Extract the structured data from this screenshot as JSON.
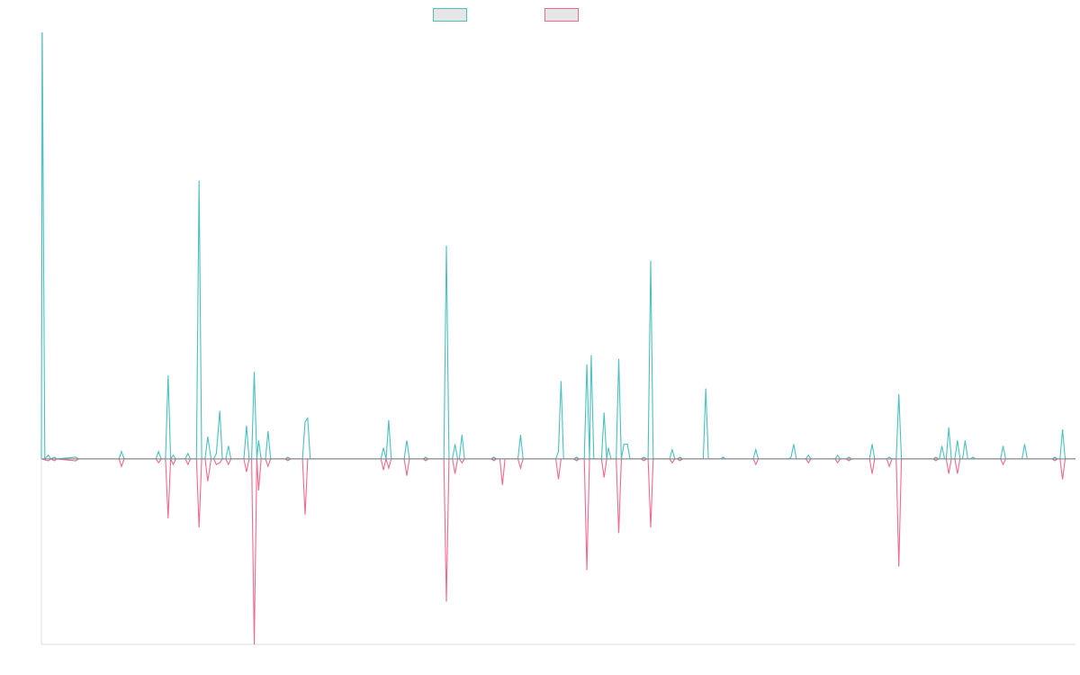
{
  "chart_data": {
    "type": "line",
    "title": "",
    "xlabel": "",
    "ylabel": "",
    "x_range": [
      0,
      120
    ],
    "ylim": [
      -100,
      230
    ],
    "grid": false,
    "legend": "top-center",
    "colors": {
      "series_1": "#4bc0c0",
      "series_2": "#f06a8f",
      "baseline": "#888888",
      "axis": "#dddddd"
    },
    "series": [
      {
        "name": "",
        "color": "#4bc0c0",
        "points": [
          [
            0,
            0
          ],
          [
            0.1,
            230
          ],
          [
            0.4,
            0
          ],
          [
            0.8,
            2
          ],
          [
            1.1,
            0
          ],
          [
            1.5,
            1
          ],
          [
            1.8,
            0
          ],
          [
            4.0,
            1
          ],
          [
            4.3,
            0
          ],
          [
            9.0,
            0
          ],
          [
            9.3,
            4
          ],
          [
            9.6,
            0
          ],
          [
            13.3,
            0
          ],
          [
            13.6,
            4
          ],
          [
            13.9,
            0
          ],
          [
            14.4,
            0
          ],
          [
            14.7,
            45
          ],
          [
            15.0,
            0
          ],
          [
            15.3,
            2
          ],
          [
            15.6,
            0
          ],
          [
            16.7,
            0
          ],
          [
            17.0,
            3
          ],
          [
            17.3,
            0
          ],
          [
            18.0,
            0
          ],
          [
            18.3,
            150
          ],
          [
            18.6,
            0
          ],
          [
            19.0,
            0
          ],
          [
            19.3,
            12
          ],
          [
            19.7,
            0
          ],
          [
            20.0,
            0
          ],
          [
            20.3,
            3
          ],
          [
            20.7,
            26
          ],
          [
            21.0,
            0
          ],
          [
            21.4,
            0
          ],
          [
            21.7,
            7
          ],
          [
            22.0,
            0
          ],
          [
            23.5,
            0
          ],
          [
            23.8,
            18
          ],
          [
            24.1,
            0
          ],
          [
            24.4,
            0
          ],
          [
            24.7,
            47
          ],
          [
            25.0,
            0
          ],
          [
            25.2,
            10
          ],
          [
            25.5,
            0
          ],
          [
            26.0,
            0
          ],
          [
            26.3,
            15
          ],
          [
            26.6,
            0
          ],
          [
            28.3,
            0
          ],
          [
            28.6,
            1
          ],
          [
            28.9,
            0
          ],
          [
            30.3,
            0
          ],
          [
            30.6,
            20
          ],
          [
            30.9,
            22
          ],
          [
            31.2,
            0
          ],
          [
            39.4,
            0
          ],
          [
            39.7,
            6
          ],
          [
            40.0,
            0
          ],
          [
            40.3,
            21
          ],
          [
            40.6,
            0
          ],
          [
            42.1,
            0
          ],
          [
            42.4,
            10
          ],
          [
            42.7,
            0
          ],
          [
            44.3,
            0
          ],
          [
            44.6,
            1
          ],
          [
            44.9,
            0
          ],
          [
            46.7,
            0
          ],
          [
            47.0,
            115
          ],
          [
            47.3,
            0
          ],
          [
            47.7,
            0
          ],
          [
            48.0,
            8
          ],
          [
            48.3,
            0
          ],
          [
            48.5,
            0
          ],
          [
            48.8,
            13
          ],
          [
            49.1,
            0
          ],
          [
            52.2,
            0
          ],
          [
            52.5,
            1
          ],
          [
            52.8,
            0
          ],
          [
            55.3,
            0
          ],
          [
            55.6,
            13
          ],
          [
            55.9,
            0
          ],
          [
            59.7,
            0
          ],
          [
            60.0,
            4
          ],
          [
            60.3,
            42
          ],
          [
            60.6,
            0
          ],
          [
            61.8,
            0
          ],
          [
            62.1,
            1
          ],
          [
            62.4,
            0
          ],
          [
            63.0,
            0
          ],
          [
            63.3,
            51
          ],
          [
            63.6,
            0
          ],
          [
            63.8,
            56
          ],
          [
            64.1,
            0
          ],
          [
            65.0,
            0
          ],
          [
            65.3,
            25
          ],
          [
            65.6,
            0
          ],
          [
            65.8,
            6
          ],
          [
            66.1,
            0
          ],
          [
            66.7,
            0
          ],
          [
            67.0,
            54
          ],
          [
            67.3,
            0
          ],
          [
            67.6,
            8
          ],
          [
            68.0,
            8
          ],
          [
            68.3,
            0
          ],
          [
            69.6,
            0
          ],
          [
            69.9,
            1
          ],
          [
            70.2,
            0
          ],
          [
            70.4,
            0
          ],
          [
            70.7,
            107
          ],
          [
            71.0,
            0
          ],
          [
            72.9,
            0
          ],
          [
            73.2,
            5
          ],
          [
            73.5,
            0
          ],
          [
            73.8,
            0
          ],
          [
            74.1,
            1
          ],
          [
            74.4,
            0
          ],
          [
            76.8,
            0
          ],
          [
            77.1,
            38
          ],
          [
            77.4,
            0
          ],
          [
            78.8,
            0
          ],
          [
            79.1,
            1
          ],
          [
            79.4,
            0
          ],
          [
            82.6,
            0
          ],
          [
            82.9,
            5
          ],
          [
            83.2,
            0
          ],
          [
            86.7,
            0
          ],
          [
            87.0,
            1
          ],
          [
            87.3,
            8
          ],
          [
            87.6,
            0
          ],
          [
            88.7,
            0
          ],
          [
            89.0,
            2
          ],
          [
            89.3,
            0
          ],
          [
            92.1,
            0
          ],
          [
            92.4,
            2
          ],
          [
            92.7,
            0
          ],
          [
            93.4,
            0
          ],
          [
            93.7,
            1
          ],
          [
            94.0,
            0
          ],
          [
            96.1,
            0
          ],
          [
            96.4,
            8
          ],
          [
            96.7,
            0
          ],
          [
            98.1,
            0
          ],
          [
            98.4,
            1
          ],
          [
            98.7,
            0
          ],
          [
            99.2,
            0
          ],
          [
            99.5,
            35
          ],
          [
            99.8,
            0
          ],
          [
            103.5,
            0
          ],
          [
            103.8,
            1
          ],
          [
            104.1,
            0
          ],
          [
            104.2,
            0
          ],
          [
            104.5,
            7
          ],
          [
            104.8,
            0
          ],
          [
            105.0,
            0
          ],
          [
            105.3,
            17
          ],
          [
            105.6,
            0
          ],
          [
            106.0,
            0
          ],
          [
            106.3,
            10
          ],
          [
            106.6,
            0
          ],
          [
            106.9,
            0
          ],
          [
            107.2,
            10
          ],
          [
            107.5,
            0
          ],
          [
            107.8,
            0
          ],
          [
            108.1,
            1
          ],
          [
            108.4,
            0
          ],
          [
            111.3,
            0
          ],
          [
            111.6,
            7
          ],
          [
            111.9,
            0
          ],
          [
            113.8,
            0
          ],
          [
            114.1,
            8
          ],
          [
            114.4,
            0
          ],
          [
            117.3,
            0
          ],
          [
            117.6,
            1
          ],
          [
            117.9,
            0
          ],
          [
            118.2,
            0
          ],
          [
            118.5,
            16
          ],
          [
            118.8,
            0
          ],
          [
            120,
            0
          ]
        ]
      },
      {
        "name": "",
        "color": "#f06a8f",
        "points": [
          [
            0,
            0
          ],
          [
            0.8,
            -1
          ],
          [
            1.1,
            0
          ],
          [
            1.5,
            -1
          ],
          [
            1.8,
            0
          ],
          [
            4.0,
            -1
          ],
          [
            4.3,
            0
          ],
          [
            9.0,
            0
          ],
          [
            9.3,
            -4
          ],
          [
            9.6,
            0
          ],
          [
            13.3,
            0
          ],
          [
            13.6,
            -2
          ],
          [
            13.9,
            0
          ],
          [
            14.4,
            0
          ],
          [
            14.7,
            -32
          ],
          [
            15.0,
            0
          ],
          [
            15.3,
            -3
          ],
          [
            15.6,
            0
          ],
          [
            16.7,
            0
          ],
          [
            17.0,
            -3
          ],
          [
            17.3,
            0
          ],
          [
            18.0,
            0
          ],
          [
            18.3,
            -37
          ],
          [
            18.6,
            0
          ],
          [
            19.0,
            0
          ],
          [
            19.3,
            -12
          ],
          [
            19.7,
            0
          ],
          [
            20.0,
            0
          ],
          [
            20.3,
            -3
          ],
          [
            20.7,
            -2
          ],
          [
            21.0,
            0
          ],
          [
            21.4,
            0
          ],
          [
            21.7,
            -3
          ],
          [
            22.0,
            0
          ],
          [
            23.5,
            0
          ],
          [
            23.8,
            -7
          ],
          [
            24.1,
            0
          ],
          [
            24.4,
            0
          ],
          [
            24.7,
            -100
          ],
          [
            25.0,
            0
          ],
          [
            25.2,
            -17
          ],
          [
            25.5,
            0
          ],
          [
            26.0,
            0
          ],
          [
            26.3,
            -4
          ],
          [
            26.6,
            0
          ],
          [
            28.3,
            0
          ],
          [
            28.6,
            -1
          ],
          [
            28.9,
            0
          ],
          [
            30.3,
            0
          ],
          [
            30.6,
            -30
          ],
          [
            30.9,
            0
          ],
          [
            39.4,
            0
          ],
          [
            39.7,
            -6
          ],
          [
            40.0,
            0
          ],
          [
            40.3,
            -5
          ],
          [
            40.6,
            0
          ],
          [
            42.1,
            0
          ],
          [
            42.4,
            -9
          ],
          [
            42.7,
            0
          ],
          [
            44.3,
            0
          ],
          [
            44.6,
            -1
          ],
          [
            44.9,
            0
          ],
          [
            46.7,
            0
          ],
          [
            47.0,
            -77
          ],
          [
            47.3,
            0
          ],
          [
            47.7,
            0
          ],
          [
            48.0,
            -8
          ],
          [
            48.3,
            0
          ],
          [
            48.5,
            0
          ],
          [
            48.8,
            -2
          ],
          [
            49.1,
            0
          ],
          [
            52.2,
            0
          ],
          [
            52.5,
            -1
          ],
          [
            52.8,
            0
          ],
          [
            53.2,
            0
          ],
          [
            53.5,
            -14
          ],
          [
            53.8,
            0
          ],
          [
            55.3,
            0
          ],
          [
            55.6,
            -5
          ],
          [
            55.9,
            0
          ],
          [
            59.7,
            0
          ],
          [
            60.0,
            -11
          ],
          [
            60.3,
            0
          ],
          [
            61.8,
            0
          ],
          [
            62.1,
            -1
          ],
          [
            62.4,
            0
          ],
          [
            63.0,
            0
          ],
          [
            63.3,
            -60
          ],
          [
            63.6,
            0
          ],
          [
            65.0,
            0
          ],
          [
            65.3,
            -10
          ],
          [
            65.6,
            0
          ],
          [
            66.7,
            0
          ],
          [
            67.0,
            -40
          ],
          [
            67.3,
            0
          ],
          [
            69.6,
            0
          ],
          [
            69.9,
            -1
          ],
          [
            70.2,
            0
          ],
          [
            70.4,
            0
          ],
          [
            70.7,
            -37
          ],
          [
            71.0,
            0
          ],
          [
            72.9,
            0
          ],
          [
            73.2,
            -2
          ],
          [
            73.5,
            0
          ],
          [
            73.8,
            0
          ],
          [
            74.1,
            -1
          ],
          [
            74.4,
            0
          ],
          [
            82.6,
            0
          ],
          [
            82.9,
            -3
          ],
          [
            83.2,
            0
          ],
          [
            88.7,
            0
          ],
          [
            89.0,
            -2
          ],
          [
            89.3,
            0
          ],
          [
            92.1,
            0
          ],
          [
            92.4,
            -2
          ],
          [
            92.7,
            0
          ],
          [
            93.4,
            0
          ],
          [
            93.7,
            -1
          ],
          [
            94.0,
            0
          ],
          [
            96.1,
            0
          ],
          [
            96.4,
            -8
          ],
          [
            96.7,
            0
          ],
          [
            98.1,
            0
          ],
          [
            98.4,
            -4
          ],
          [
            98.7,
            0
          ],
          [
            99.2,
            0
          ],
          [
            99.5,
            -58
          ],
          [
            99.8,
            0
          ],
          [
            103.5,
            0
          ],
          [
            103.8,
            -1
          ],
          [
            104.1,
            0
          ],
          [
            105.0,
            0
          ],
          [
            105.3,
            -8
          ],
          [
            105.6,
            0
          ],
          [
            106.0,
            0
          ],
          [
            106.3,
            -8
          ],
          [
            106.6,
            0
          ],
          [
            111.3,
            0
          ],
          [
            111.6,
            -3
          ],
          [
            111.9,
            0
          ],
          [
            117.3,
            0
          ],
          [
            117.6,
            -1
          ],
          [
            117.9,
            0
          ],
          [
            118.2,
            0
          ],
          [
            118.5,
            -11
          ],
          [
            118.8,
            0
          ],
          [
            120,
            0
          ]
        ]
      }
    ]
  }
}
